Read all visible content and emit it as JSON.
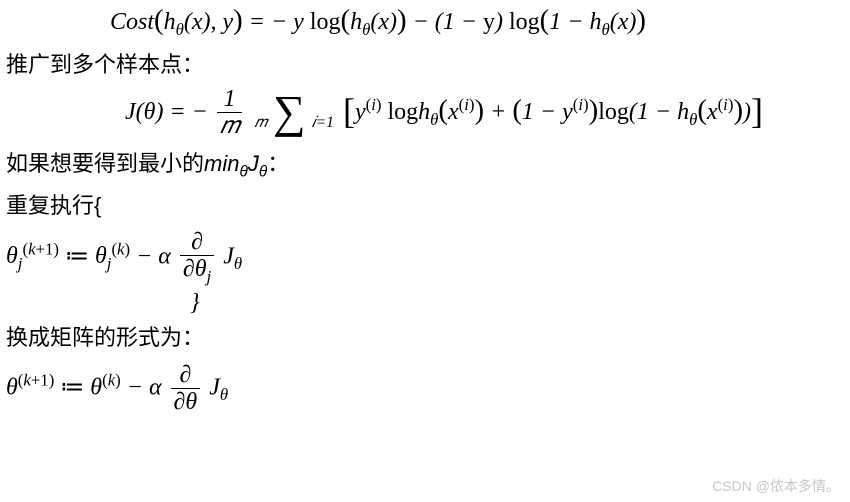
{
  "eq_cost": "𝐶𝑜𝑠𝑡(ℎ_θ(𝑥), 𝑦) = −𝑦 log(ℎ_θ(𝑥)) − (1 − y) log(1 − ℎ_θ(𝑥))",
  "text_generalize": "推广到多个样本点：",
  "eq_J_prefix": "𝐽(θ) = −",
  "frac_1m_num": "1",
  "frac_1m_den": "𝑚",
  "sum_top": "𝑚",
  "sum_bot": "𝑖=1",
  "eq_J_body": "𝑦^(𝑖) logℎ_θ(𝑥^(𝑖)) + (1 − 𝑦^(𝑖)) log(1 − ℎ_θ(𝑥^(𝑖)))",
  "text_if_min_prefix": "如果想要得到最小的",
  "min_expr": "𝑚𝑖𝑛_θ 𝐽_θ",
  "text_if_min_suffix": "：",
  "text_repeat": "重复执行{",
  "eq_update_lhs": "θ_j^(k+1)",
  "assign_op": " ≔ ",
  "eq_update_rhs1": "θ_j^(k)",
  "minus_alpha": " − α",
  "partial_num": "∂",
  "partial_den_j": "∂θ_j",
  "partial_den": "∂θ",
  "J_theta": "𝐽_θ",
  "close_brace": "}",
  "text_matrix": "换成矩阵的形式为：",
  "eq_matrix_lhs": "θ^(k+1)",
  "eq_matrix_rhs1": "θ^(k)",
  "watermark": "CSDN @侬本多情。"
}
